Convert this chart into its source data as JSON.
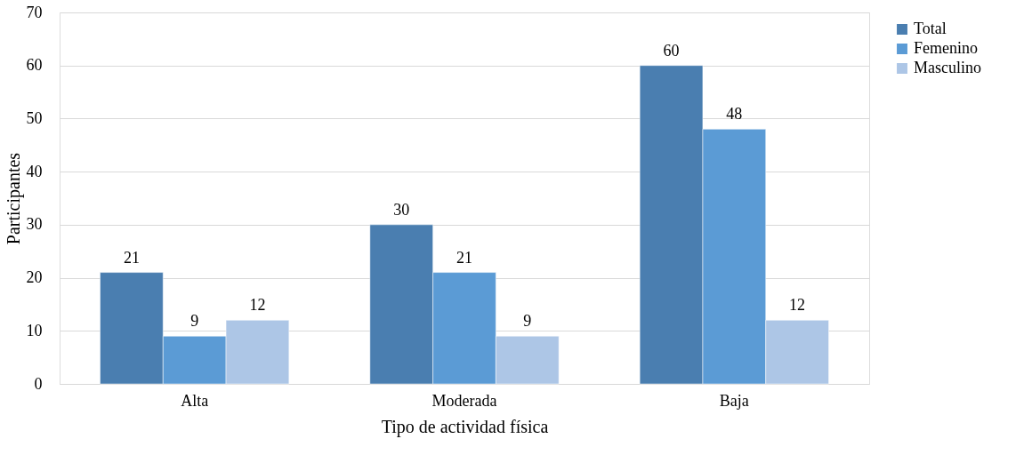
{
  "chart_data": {
    "type": "bar",
    "xlabel": "Tipo de actividad física",
    "ylabel": "Participantes",
    "categories": [
      "Alta",
      "Moderada",
      "Baja"
    ],
    "series": [
      {
        "name": "Total",
        "color": "#4a7eb0",
        "values": [
          21,
          30,
          60
        ]
      },
      {
        "name": "Femenino",
        "color": "#5b9bd5",
        "values": [
          9,
          21,
          48
        ]
      },
      {
        "name": "Masculino",
        "color": "#adc6e6",
        "values": [
          12,
          9,
          12
        ]
      }
    ],
    "ylim": [
      0,
      70
    ],
    "yticks": [
      0,
      10,
      20,
      30,
      40,
      50,
      60,
      70
    ],
    "grid": "y",
    "legend": "right",
    "data_labels": true
  }
}
